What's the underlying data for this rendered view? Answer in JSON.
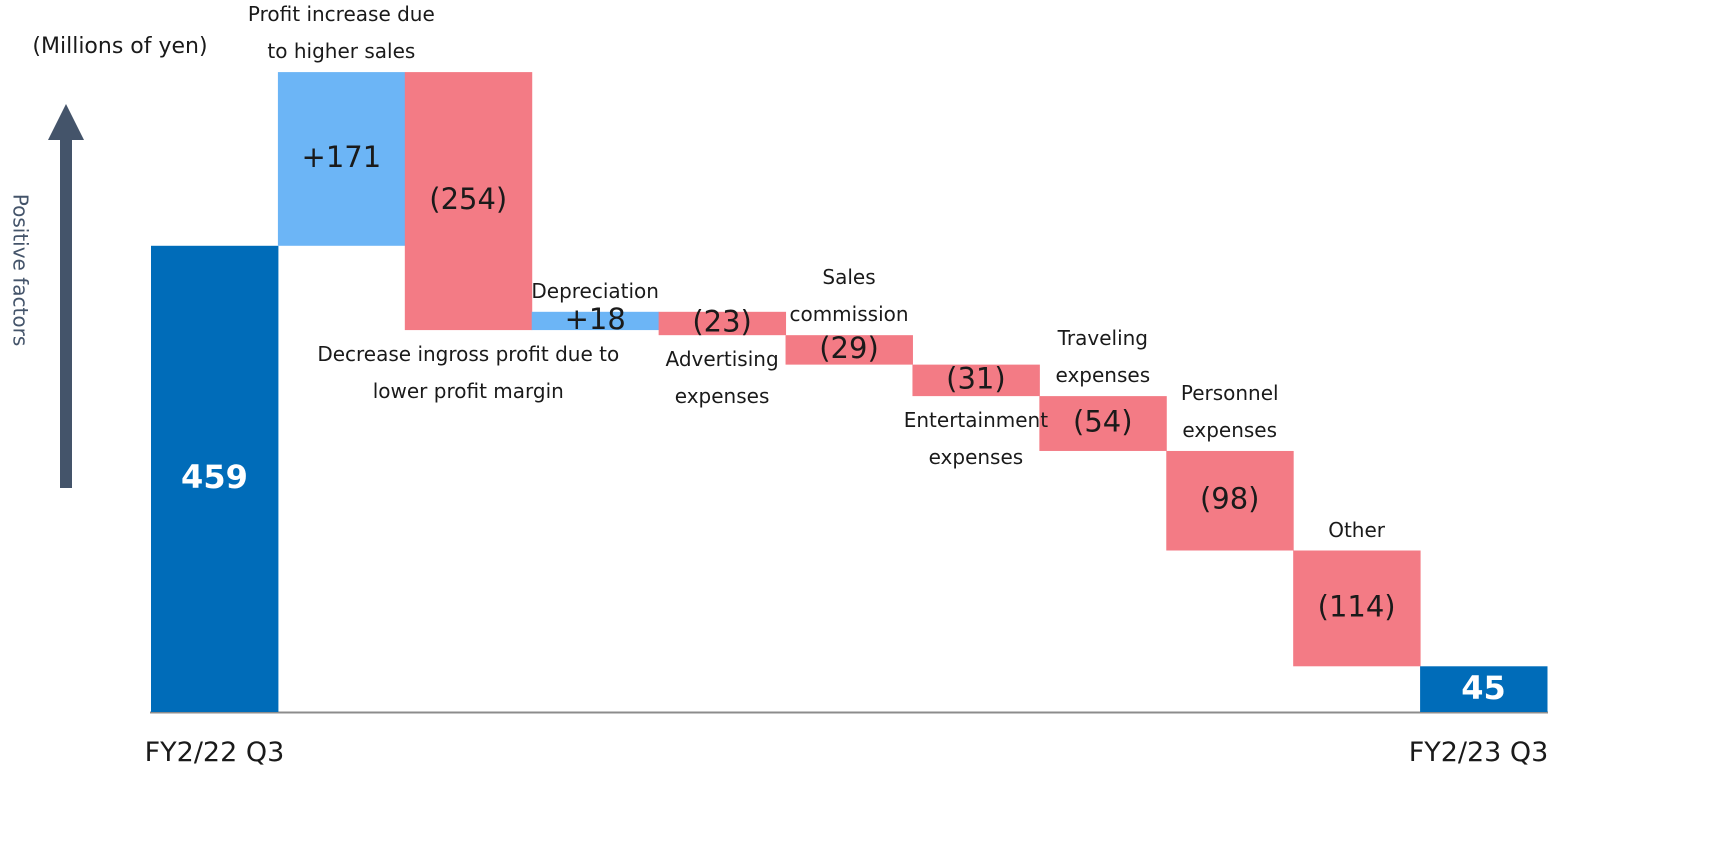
{
  "chart_data": {
    "type": "waterfall",
    "unit_label": "(Millions of yen)",
    "y_axis_label": "Positive factors",
    "categories": [
      "FY2/22 Q3",
      "Profit increase due to higher sales",
      "Decrease ingross profit due to lower profit margin",
      "Depreciation",
      "Advertising expenses",
      "Sales commission",
      "Entertainment expenses",
      "Traveling expenses",
      "Personnel expenses",
      "Other",
      "FY2/23 Q3"
    ],
    "values": [
      459,
      171,
      -254,
      18,
      -23,
      -29,
      -31,
      -54,
      -98,
      -114,
      45
    ],
    "value_labels": [
      "459",
      "+171",
      "(254)",
      "+18",
      "(23)",
      "(29)",
      "(31)",
      "(54)",
      "(98)",
      "(114)",
      "45"
    ],
    "colors": {
      "total": "#006cb9",
      "increase": "#6cb5f6",
      "decrease": "#f37b85"
    },
    "ylim": [
      0,
      700
    ]
  }
}
